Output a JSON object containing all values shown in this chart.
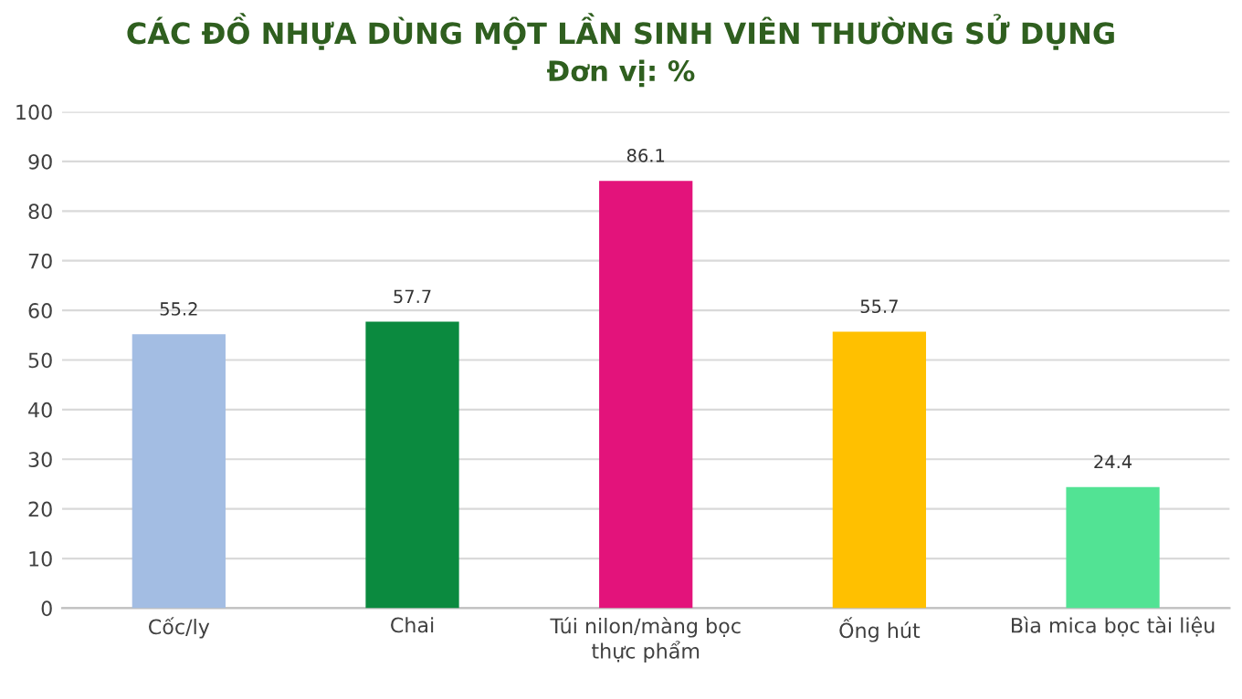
{
  "chart_data": {
    "type": "bar",
    "title": "CÁC ĐỒ NHỰA DÙNG MỘT LẦN SINH VIÊN THƯỜNG SỬ DỤNG",
    "subtitle": "Đơn vị: %",
    "categories": [
      "Cốc/ly",
      "Chai",
      "Túi nilon/màng bọc\nthực phẩm",
      "Ống hút",
      "Bìa mica bọc tài liệu"
    ],
    "values": [
      55.2,
      57.7,
      86.1,
      55.7,
      24.4
    ],
    "colors": [
      "#a3bde3",
      "#0b8a3f",
      "#e3137b",
      "#ffc000",
      "#52e394"
    ],
    "ylim": [
      0,
      100
    ],
    "yticks": [
      0,
      10,
      20,
      30,
      40,
      50,
      60,
      70,
      80,
      90,
      100
    ],
    "grid": "y",
    "data_labels": true
  }
}
